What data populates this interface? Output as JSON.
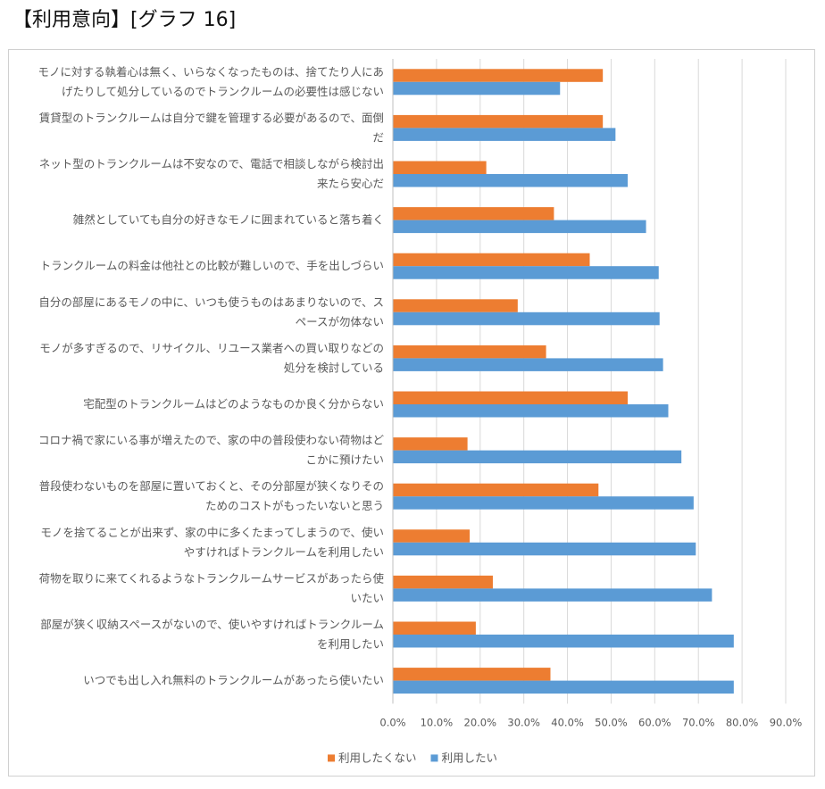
{
  "page_title": "【利用意向】[グラフ 16]",
  "chart_data": {
    "type": "bar",
    "orientation": "horizontal",
    "categories": [
      [
        "モノに対する執着心は無く、いらなくなったものは、捨てたり人にあ",
        "げたりして処分しているのでトランクルームの必要性は感じない"
      ],
      [
        "賃貸型のトランクルームは自分で鍵を管理する必要があるので、面倒",
        "だ"
      ],
      [
        "ネット型のトランクルームは不安なので、電話で相談しながら検討出",
        "来たら安心だ"
      ],
      [
        "雑然としていても自分の好きなモノに囲まれていると落ち着く"
      ],
      [
        "トランクルームの料金は他社との比較が難しいので、手を出しづらい"
      ],
      [
        "自分の部屋にあるモノの中に、いつも使うものはあまりないので、ス",
        "ペースが勿体ない"
      ],
      [
        "モノが多すぎるので、リサイクル、リユース業者への買い取りなどの",
        "処分を検討している"
      ],
      [
        "宅配型のトランクルームはどのようなものか良く分からない"
      ],
      [
        "コロナ禍で家にいる事が増えたので、家の中の普段使わない荷物はど",
        "こかに預けたい"
      ],
      [
        "普段使わないものを部屋に置いておくと、その分部屋が狭くなりその",
        "ためのコストがもったいないと思う"
      ],
      [
        "モノを捨てることが出来ず、家の中に多くたまってしまうので、使い",
        "やすければトランクルームを利用したい"
      ],
      [
        "荷物を取りに来てくれるようなトランクルームサービスがあったら使",
        "いたい"
      ],
      [
        "部屋が狭く収納スペースがないので、使いやすければトランクルーム",
        "を利用したい"
      ],
      [
        "いつでも出し入れ無料のトランクルームがあったら使いたい"
      ]
    ],
    "series": [
      {
        "name": "利用したくない",
        "color": "#ED7D31",
        "values": [
          48.0,
          48.0,
          21.3,
          36.8,
          45.0,
          28.5,
          35.0,
          53.7,
          17.0,
          47.0,
          17.5,
          22.8,
          18.9,
          36.0
        ]
      },
      {
        "name": "利用したい",
        "color": "#5B9BD5",
        "values": [
          38.2,
          50.9,
          53.7,
          57.9,
          60.8,
          61.0,
          61.8,
          63.0,
          66.0,
          68.8,
          69.3,
          73.0,
          78.0,
          78.0
        ]
      }
    ],
    "ticks": [
      "0.0%",
      "10.0%",
      "20.0%",
      "30.0%",
      "40.0%",
      "50.0%",
      "60.0%",
      "70.0%",
      "80.0%",
      "90.0%"
    ],
    "xlim": [
      0,
      90
    ],
    "grid": true,
    "legend_position": "bottom",
    "title": "",
    "xlabel": "",
    "ylabel": ""
  }
}
